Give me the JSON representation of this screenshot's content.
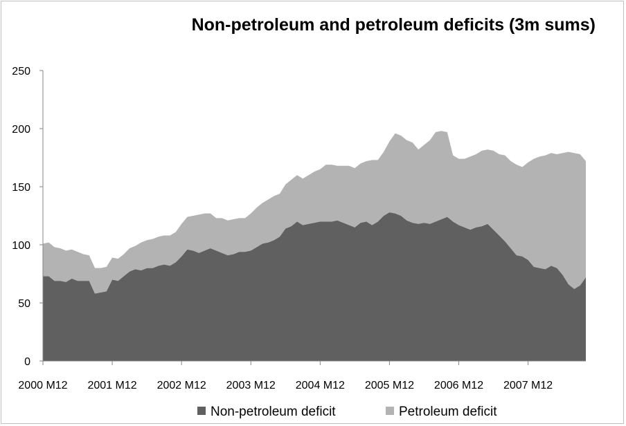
{
  "chart_data": {
    "type": "area",
    "stacked": true,
    "title": "Non-petroleum and petroleum deficits (3m sums)",
    "xlabel": "",
    "ylabel": "",
    "ylim": [
      0,
      250
    ],
    "yticks": [
      0,
      50,
      100,
      150,
      200,
      250
    ],
    "x_tick_labels": [
      "2000 M12",
      "2001 M12",
      "2002 M12",
      "2003 M12",
      "2004 M12",
      "2005 M12",
      "2006 M12",
      "2007 M12"
    ],
    "grid": false,
    "legend_position": "bottom",
    "series": [
      {
        "name": "Non-petroleum deficit",
        "color": "#606060",
        "values": [
          73,
          73,
          69,
          69,
          68,
          71,
          69,
          69,
          69,
          58,
          59,
          60,
          70,
          69,
          73,
          77,
          79,
          78,
          80,
          80,
          82,
          83,
          82,
          85,
          90,
          96,
          95,
          93,
          95,
          97,
          95,
          93,
          91,
          92,
          94,
          94,
          95,
          98,
          101,
          102,
          104,
          107,
          114,
          116,
          120,
          117,
          118,
          119,
          120,
          120,
          120,
          121,
          119,
          117,
          115,
          119,
          120,
          117,
          120,
          125,
          128,
          127,
          125,
          121,
          119,
          118,
          119,
          118,
          120,
          122,
          124,
          120,
          117,
          115,
          113,
          115,
          116,
          118,
          113,
          108,
          103,
          97,
          91,
          90,
          87,
          81,
          80,
          79,
          82,
          80,
          74,
          66,
          62,
          65,
          72
        ]
      },
      {
        "name": "Petroleum deficit",
        "color": "#b3b3b3",
        "values": [
          28,
          29,
          29,
          28,
          27,
          25,
          25,
          23,
          22,
          22,
          21,
          21,
          19,
          19,
          19,
          20,
          20,
          24,
          24,
          25,
          25,
          25,
          26,
          26,
          28,
          28,
          30,
          33,
          32,
          30,
          28,
          30,
          30,
          30,
          29,
          29,
          32,
          34,
          35,
          37,
          38,
          37,
          38,
          40,
          40,
          40,
          42,
          44,
          45,
          49,
          49,
          47,
          49,
          51,
          51,
          51,
          52,
          56,
          53,
          55,
          61,
          69,
          69,
          69,
          69,
          64,
          67,
          72,
          77,
          76,
          73,
          57,
          57,
          59,
          63,
          63,
          65,
          64,
          68,
          70,
          74,
          75,
          78,
          77,
          84,
          93,
          96,
          98,
          97,
          98,
          105,
          114,
          117,
          113,
          100
        ]
      }
    ]
  }
}
